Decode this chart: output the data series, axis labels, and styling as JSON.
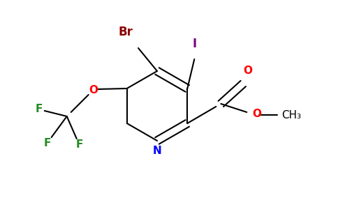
{
  "background_color": "#ffffff",
  "bond_color": "#000000",
  "atom_colors": {
    "Br": "#8b0000",
    "I": "#800080",
    "O": "#ff0000",
    "N": "#0000ff",
    "F": "#228b22",
    "C": "#000000"
  },
  "figsize": [
    4.84,
    3.0
  ],
  "dpi": 100
}
